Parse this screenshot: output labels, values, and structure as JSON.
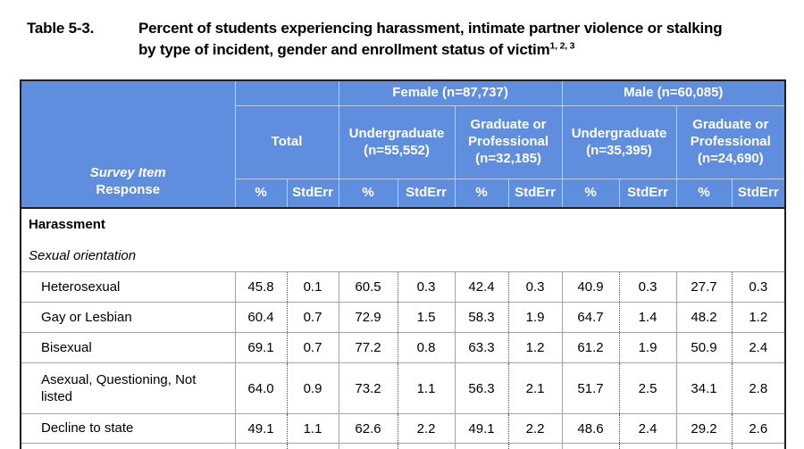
{
  "title": {
    "label": "Table 5-3.",
    "lines": [
      "Percent of students experiencing harassment, intimate partner violence or stalking",
      "by type of incident, gender and enrollment status of victim"
    ],
    "footnote_refs": "1, 2, 3"
  },
  "table": {
    "corner": {
      "line1": "Survey Item",
      "line2": "Response"
    },
    "groups": [
      "Female (n=87,737)",
      "Male (n=60,085)"
    ],
    "subheaders": [
      "Total",
      "Undergraduate (n=55,552)",
      "Graduate or Professional (n=32,185)",
      "Undergraduate (n=35,395)",
      "Graduate or Professional (n=24,690)"
    ],
    "measures": {
      "pct": "%",
      "stderr": "StdErr"
    },
    "sections": {
      "primary": "Harassment",
      "secondary": "Sexual orientation"
    },
    "rows": [
      {
        "label": "Heterosexual",
        "values": [
          "45.8",
          "0.1",
          "60.5",
          "0.3",
          "42.4",
          "0.3",
          "40.9",
          "0.3",
          "27.7",
          "0.3"
        ]
      },
      {
        "label": "Gay or Lesbian",
        "values": [
          "60.4",
          "0.7",
          "72.9",
          "1.5",
          "58.3",
          "1.9",
          "64.7",
          "1.4",
          "48.2",
          "1.2"
        ]
      },
      {
        "label": "Bisexual",
        "values": [
          "69.1",
          "0.7",
          "77.2",
          "0.8",
          "63.3",
          "1.2",
          "61.2",
          "1.9",
          "50.9",
          "2.4"
        ]
      },
      {
        "label": "Asexual, Questioning, Not listed",
        "values": [
          "64.0",
          "0.9",
          "73.2",
          "1.1",
          "56.3",
          "2.1",
          "51.7",
          "2.5",
          "34.1",
          "2.8"
        ]
      },
      {
        "label": "Decline to state",
        "values": [
          "49.1",
          "1.1",
          "62.6",
          "2.2",
          "49.1",
          "2.2",
          "48.6",
          "2.4",
          "29.2",
          "2.6"
        ]
      }
    ]
  },
  "colors": {
    "header_bg": "#5F8EDF",
    "header_text": "#FFFFFF",
    "header_gridline": "#C3CCD9",
    "outer_border": "#1F1F1F",
    "row_line": "#A3A3A3",
    "body_text": "#000000"
  }
}
